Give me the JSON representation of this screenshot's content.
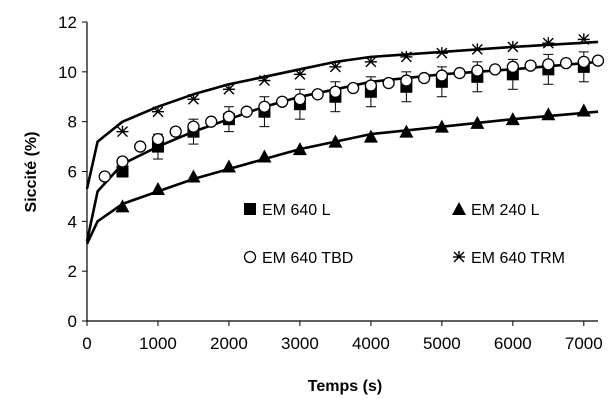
{
  "chart_data": {
    "type": "scatter",
    "xlabel": "Temps (s)",
    "ylabel": "Siccité (%)",
    "xlim": [
      0,
      7200
    ],
    "ylim": [
      0,
      12
    ],
    "xticks": [
      0,
      1000,
      2000,
      3000,
      4000,
      5000,
      6000,
      7000
    ],
    "yticks": [
      0,
      2,
      4,
      6,
      8,
      10,
      12
    ],
    "grid": false,
    "legend_position": "inside-center",
    "series": [
      {
        "name": "EM 640 L",
        "marker": "filled-square",
        "x": [
          500,
          1000,
          1500,
          2000,
          2500,
          3000,
          3500,
          4000,
          4500,
          5000,
          5500,
          6000,
          6500,
          7000
        ],
        "y": [
          6.0,
          7.0,
          7.6,
          8.1,
          8.4,
          8.7,
          9.0,
          9.2,
          9.4,
          9.6,
          9.8,
          9.9,
          10.1,
          10.2
        ],
        "error": [
          0.2,
          0.5,
          0.5,
          0.5,
          0.6,
          0.6,
          0.6,
          0.6,
          0.6,
          0.6,
          0.6,
          0.6,
          0.6,
          0.6
        ],
        "fit": [
          3.2,
          5.2,
          6.3,
          7.0,
          7.6,
          8.1,
          8.6,
          9.0,
          9.3,
          9.6,
          9.9,
          10.1,
          10.4
        ]
      },
      {
        "name": "EM 240 L",
        "marker": "filled-triangle",
        "x": [
          500,
          1000,
          1500,
          2000,
          2500,
          3000,
          3500,
          4000,
          4500,
          5000,
          5500,
          6000,
          6500,
          7000
        ],
        "y": [
          4.6,
          5.3,
          5.8,
          6.2,
          6.6,
          6.9,
          7.2,
          7.4,
          7.6,
          7.8,
          7.95,
          8.1,
          8.3,
          8.45
        ],
        "fit": [
          3.1,
          4.0,
          4.7,
          5.2,
          5.7,
          6.1,
          6.5,
          6.9,
          7.2,
          7.5,
          7.8,
          8.1,
          8.4
        ]
      },
      {
        "name": "EM 640 TBD",
        "marker": "open-circle",
        "x": [
          250,
          500,
          750,
          1000,
          1250,
          1500,
          1750,
          2000,
          2250,
          2500,
          2750,
          3000,
          3250,
          3500,
          3750,
          4000,
          4250,
          4500,
          4750,
          5000,
          5250,
          5500,
          5750,
          6000,
          6250,
          6500,
          6750,
          7000,
          7200
        ],
        "y": [
          5.8,
          6.4,
          7.0,
          7.3,
          7.6,
          7.8,
          8.0,
          8.2,
          8.4,
          8.6,
          8.8,
          8.9,
          9.1,
          9.2,
          9.35,
          9.45,
          9.55,
          9.65,
          9.75,
          9.85,
          9.95,
          10.05,
          10.1,
          10.2,
          10.25,
          10.3,
          10.35,
          10.4,
          10.45
        ]
      },
      {
        "name": "EM 640 TRM",
        "marker": "asterisk",
        "x": [
          500,
          1000,
          1500,
          2000,
          2500,
          3000,
          3500,
          4000,
          4500,
          5000,
          5500,
          6000,
          6500,
          7000
        ],
        "y": [
          7.6,
          8.4,
          8.9,
          9.3,
          9.65,
          9.9,
          10.2,
          10.4,
          10.6,
          10.75,
          10.9,
          11.0,
          11.15,
          11.3
        ],
        "fit": [
          5.3,
          7.2,
          8.0,
          8.6,
          9.1,
          9.5,
          9.8,
          10.1,
          10.4,
          10.6,
          10.8,
          11.0,
          11.2
        ]
      }
    ],
    "fit_x": [
      0,
      150,
      500,
      1000,
      1500,
      2000,
      2500,
      3000,
      3500,
      4000,
      5000,
      6000,
      7200
    ]
  },
  "colors": {
    "ink": "#000000",
    "background": "#ffffff"
  }
}
